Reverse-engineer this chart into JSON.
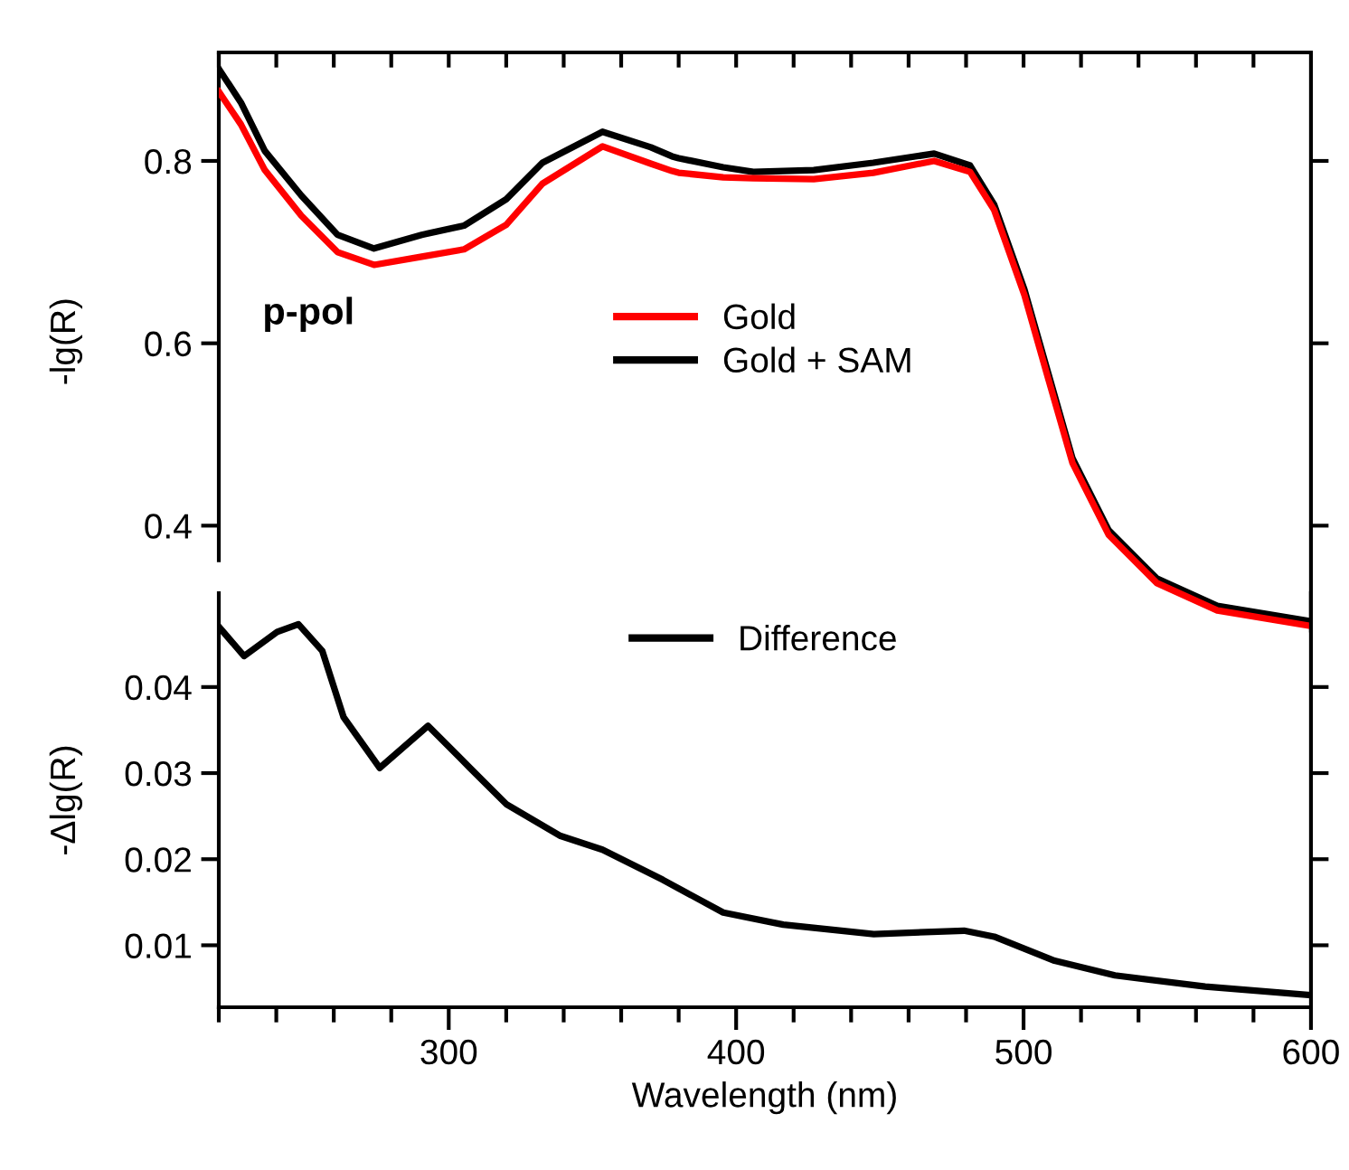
{
  "chart_data": [
    {
      "type": "line",
      "ylabel": "-lg(R)",
      "annotations": [
        "p-pol"
      ],
      "legend": "center",
      "tick_labels": "y",
      "xlim": [
        220,
        600
      ],
      "ylim": [
        0.285,
        0.919
      ],
      "yticks": [
        0.4,
        0.6,
        0.8
      ],
      "xticks": [
        {
          "value": 220,
          "label": null
        },
        {
          "value": 240,
          "label": null
        },
        {
          "value": 260,
          "label": null
        },
        {
          "value": 280,
          "label": null
        },
        {
          "value": 300,
          "label": null
        },
        {
          "value": 320,
          "label": null
        },
        {
          "value": 340,
          "label": null
        },
        {
          "value": 360,
          "label": null
        },
        {
          "value": 380,
          "label": null
        },
        {
          "value": 400,
          "label": null
        },
        {
          "value": 420,
          "label": null
        },
        {
          "value": 440,
          "label": null
        },
        {
          "value": 460,
          "label": null
        },
        {
          "value": 480,
          "label": null
        },
        {
          "value": 500,
          "label": null
        },
        {
          "value": 520,
          "label": null
        },
        {
          "value": 540,
          "label": null
        },
        {
          "value": 560,
          "label": null
        },
        {
          "value": 580,
          "label": null
        }
      ],
      "x": [
        220,
        227.7,
        236,
        248.7,
        261.3,
        274,
        290.6,
        305.3,
        320,
        332.6,
        353.5,
        370.3,
        377.7,
        380,
        395.5,
        406,
        427,
        447.7,
        468.9,
        481.4,
        489.8,
        500.3,
        508.7,
        517,
        529.6,
        546.4,
        567.4,
        600
      ],
      "series": [
        {
          "name": "Gold",
          "color": "#ff0000",
          "values": [
            0.876,
            0.84,
            0.79,
            0.74,
            0.7,
            0.686,
            0.695,
            0.703,
            0.73,
            0.775,
            0.816,
            0.797,
            0.789,
            0.787,
            0.782,
            0.781,
            0.78,
            0.787,
            0.8,
            0.788,
            0.746,
            0.653,
            0.56,
            0.469,
            0.39,
            0.337,
            0.307,
            0.29
          ]
        },
        {
          "name": "Gold + SAM",
          "color": "#000000",
          "values": [
            0.901,
            0.864,
            0.811,
            0.762,
            0.719,
            0.704,
            0.719,
            0.729,
            0.758,
            0.798,
            0.832,
            0.815,
            0.805,
            0.803,
            0.793,
            0.788,
            0.79,
            0.798,
            0.808,
            0.795,
            0.752,
            0.659,
            0.566,
            0.474,
            0.395,
            0.342,
            0.312,
            0.295
          ]
        }
      ]
    },
    {
      "type": "line",
      "xlabel": "Wavelength (nm)",
      "ylabel": "-Δlg(R)",
      "legend": "top",
      "xlim": [
        220,
        600
      ],
      "ylim": [
        0.0028,
        0.0509
      ],
      "yticks": [
        0.01,
        0.02,
        0.03,
        0.04
      ],
      "xticks": [
        {
          "value": 220,
          "label": null
        },
        {
          "value": 240,
          "label": null
        },
        {
          "value": 260,
          "label": null
        },
        {
          "value": 280,
          "label": null
        },
        300,
        {
          "value": 320,
          "label": null
        },
        {
          "value": 340,
          "label": null
        },
        {
          "value": 360,
          "label": null
        },
        {
          "value": 380,
          "label": null
        },
        400,
        {
          "value": 420,
          "label": null
        },
        {
          "value": 440,
          "label": null
        },
        {
          "value": 460,
          "label": null
        },
        {
          "value": 480,
          "label": null
        },
        500,
        {
          "value": 520,
          "label": null
        },
        {
          "value": 540,
          "label": null
        },
        {
          "value": 560,
          "label": null
        },
        {
          "value": 580,
          "label": null
        },
        600
      ],
      "x": [
        220,
        228.8,
        240.3,
        247.7,
        256,
        263.4,
        276,
        292.8,
        307.4,
        320,
        338.9,
        353.5,
        374.5,
        395.5,
        416.4,
        447.9,
        479.3,
        489.8,
        510.8,
        531.8,
        563.2,
        600
      ],
      "series": [
        {
          "name": "Difference",
          "color": "#000000",
          "values": [
            0.047,
            0.0436,
            0.0464,
            0.0473,
            0.0442,
            0.0365,
            0.0306,
            0.0355,
            0.0306,
            0.0264,
            0.0227,
            0.0211,
            0.0176,
            0.0138,
            0.0124,
            0.0113,
            0.0117,
            0.011,
            0.0082,
            0.0065,
            0.0052,
            0.0042
          ]
        }
      ]
    }
  ]
}
